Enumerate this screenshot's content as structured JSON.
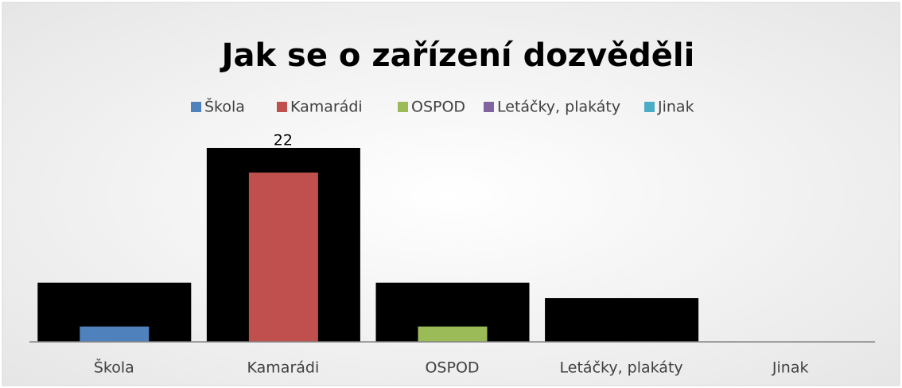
{
  "chart_data": {
    "type": "bar",
    "title": "Jak se o zařízení dozvěděli",
    "categories": [
      "Škola",
      "Kamarádi",
      "OSPOD",
      "Letáčky, plakáty",
      "Jinak"
    ],
    "values": [
      2,
      22,
      2,
      0,
      0
    ],
    "colors": [
      "#4f81bd",
      "#c0504d",
      "#9bbb59",
      "#8064a2",
      "#4bacc6"
    ],
    "ylim": [
      0,
      25
    ],
    "legend": "top"
  }
}
